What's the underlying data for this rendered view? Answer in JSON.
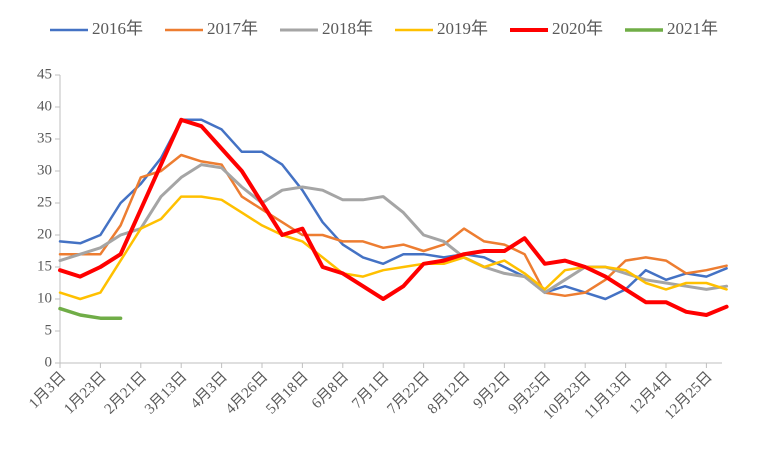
{
  "chart_data": {
    "type": "line",
    "categories": [
      "1月3日",
      null,
      "1月23日",
      null,
      "2月21日",
      null,
      "3月13日",
      null,
      "4月3日",
      null,
      "4月26日",
      null,
      "5月18日",
      null,
      "6月8日",
      null,
      "7月1日",
      null,
      "7月22日",
      null,
      "8月12日",
      null,
      "9月2日",
      null,
      "9月25日",
      null,
      "10月23日",
      null,
      "11月13日",
      null,
      "12月4日",
      null,
      "12月25日",
      null
    ],
    "series": [
      {
        "name": "2016年",
        "color": "#4472c4",
        "width": 2.5,
        "values": [
          19,
          18.7,
          20,
          25,
          28,
          32,
          38,
          38,
          36.5,
          33,
          33,
          31,
          27,
          22,
          18.5,
          16.5,
          15.5,
          17,
          17,
          16.5,
          17,
          16.5,
          15,
          13.5,
          11,
          12,
          11,
          10,
          11.5,
          14.5,
          13,
          14,
          13.5,
          14.8
        ]
      },
      {
        "name": "2017年",
        "color": "#ed7d31",
        "width": 2.5,
        "values": [
          17,
          17,
          17,
          21.5,
          29,
          30,
          32.5,
          31.5,
          31,
          26,
          24,
          22,
          20,
          20,
          19,
          19,
          18,
          18.5,
          17.5,
          18.5,
          21,
          19,
          18.5,
          17,
          11,
          10.5,
          11,
          13,
          16,
          16.5,
          16,
          14,
          14.5,
          15.2
        ]
      },
      {
        "name": "2018年",
        "color": "#a5a5a5",
        "width": 3,
        "values": [
          16,
          17,
          18,
          20,
          21,
          26,
          29,
          31,
          30.5,
          27.5,
          25,
          27,
          27.5,
          27,
          25.5,
          25.5,
          26,
          23.5,
          20,
          19,
          16.5,
          15,
          14,
          13.5,
          11,
          13,
          15,
          15,
          14,
          13,
          12.5,
          12,
          11.5,
          12
        ]
      },
      {
        "name": "2019年",
        "color": "#ffc000",
        "width": 2.5,
        "values": [
          11,
          10,
          11,
          16,
          21,
          22.5,
          26,
          26,
          25.5,
          23.5,
          21.5,
          20,
          19,
          16.5,
          14,
          13.5,
          14.5,
          15,
          15.5,
          15.5,
          16.5,
          15,
          16,
          14,
          11.5,
          14.5,
          15,
          15,
          14.5,
          12.5,
          11.5,
          12.5,
          12.5,
          11.5
        ]
      },
      {
        "name": "2020年",
        "color": "#ff0000",
        "width": 4,
        "values": [
          14.5,
          13.5,
          15,
          17,
          24,
          31,
          38,
          37,
          33.5,
          30,
          25,
          20,
          21,
          15,
          14,
          12,
          10,
          12,
          15.5,
          16,
          17,
          17.5,
          17.5,
          19.5,
          15.5,
          16,
          15,
          13.5,
          11.5,
          9.5,
          9.5,
          8,
          7.5,
          8.8
        ]
      },
      {
        "name": "2021年",
        "color": "#70ad47",
        "width": 3.5,
        "values": [
          8.5,
          7.5,
          7,
          7,
          null,
          null,
          null,
          null,
          null,
          null,
          null,
          null,
          null,
          null,
          null,
          null,
          null,
          null,
          null,
          null,
          null,
          null,
          null,
          null,
          null,
          null,
          null,
          null,
          null,
          null,
          null,
          null,
          null,
          null
        ]
      }
    ],
    "ylim": [
      0,
      45
    ],
    "yticks": [
      0,
      5,
      10,
      15,
      20,
      25,
      30,
      35,
      40,
      45
    ],
    "legend": "top"
  }
}
